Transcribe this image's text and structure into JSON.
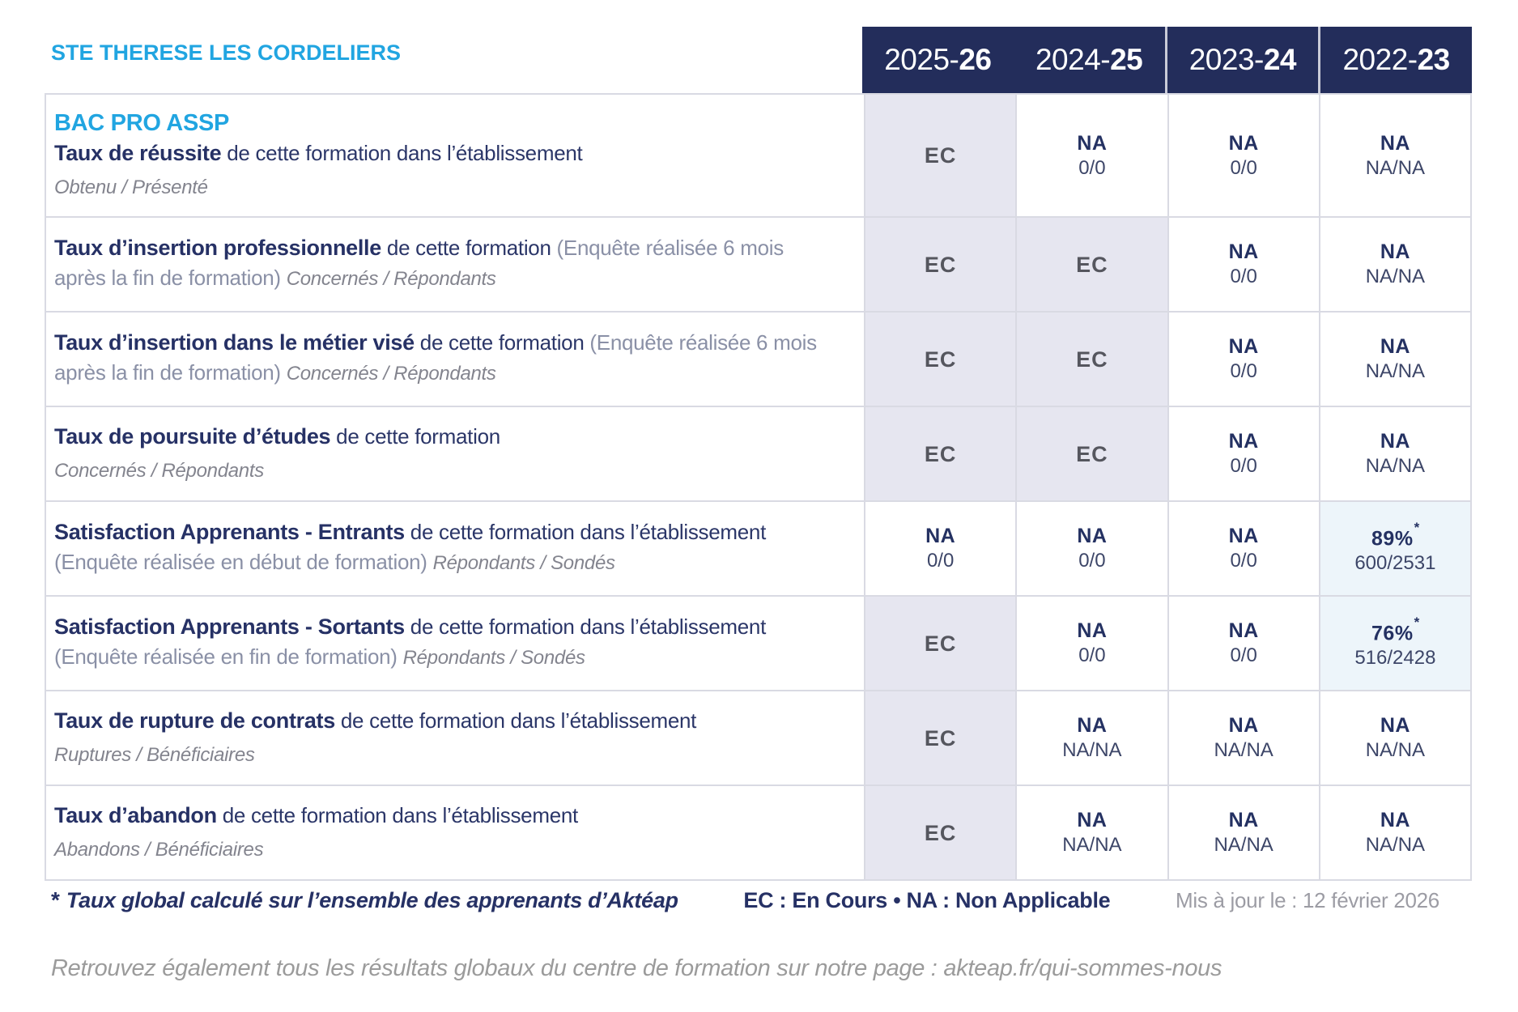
{
  "school": "STE THERESE LES CORDELIERS",
  "colors": {
    "accent_blue": "#21A5E1",
    "header_navy": "#232D5B",
    "text_navy": "#263165",
    "ec_cell_bg": "#E6E6F0",
    "pct_cell_bg": "#EDF5FA",
    "grid_border": "#D9DAE3"
  },
  "columns": [
    {
      "prefix": "2025-",
      "suffix": "26"
    },
    {
      "prefix": "2024-",
      "suffix": "25"
    },
    {
      "prefix": "2023-",
      "suffix": "24"
    },
    {
      "prefix": "2022-",
      "suffix": "23"
    }
  ],
  "rows": [
    {
      "program": "BAC PRO ASSP",
      "title": "Taux de réussite",
      "desc": " de cette formation dans l’établissement",
      "paren": "",
      "sub_inline": "",
      "sub_block": "Obtenu / Présenté",
      "cells": [
        {
          "type": "ec",
          "main": "EC",
          "star": "",
          "sub": ""
        },
        {
          "type": "na",
          "main": "NA",
          "star": "",
          "sub": "0/0"
        },
        {
          "type": "na",
          "main": "NA",
          "star": "",
          "sub": "0/0"
        },
        {
          "type": "na",
          "main": "NA",
          "star": "",
          "sub": "NA/NA"
        }
      ]
    },
    {
      "title": "Taux d’insertion professionnelle",
      "desc": " de cette formation ",
      "paren": "(Enquête réalisée 6 mois après la fin de formation) ",
      "sub_inline": "Concernés / Répondants",
      "sub_block": "",
      "cells": [
        {
          "type": "ec",
          "main": "EC",
          "star": "",
          "sub": ""
        },
        {
          "type": "ec",
          "main": "EC",
          "star": "",
          "sub": ""
        },
        {
          "type": "na",
          "main": "NA",
          "star": "",
          "sub": "0/0"
        },
        {
          "type": "na",
          "main": "NA",
          "star": "",
          "sub": "NA/NA"
        }
      ]
    },
    {
      "title": "Taux d’insertion dans le métier visé",
      "desc": " de cette formation ",
      "paren": "(Enquête réalisée 6 mois après la fin de formation) ",
      "sub_inline": "Concernés / Répondants",
      "sub_block": "",
      "cells": [
        {
          "type": "ec",
          "main": "EC",
          "star": "",
          "sub": ""
        },
        {
          "type": "ec",
          "main": "EC",
          "star": "",
          "sub": ""
        },
        {
          "type": "na",
          "main": "NA",
          "star": "",
          "sub": "0/0"
        },
        {
          "type": "na",
          "main": "NA",
          "star": "",
          "sub": "NA/NA"
        }
      ]
    },
    {
      "title": "Taux de poursuite d’études",
      "desc": " de cette formation",
      "paren": "",
      "sub_inline": "",
      "sub_block": "Concernés / Répondants",
      "cells": [
        {
          "type": "ec",
          "main": "EC",
          "star": "",
          "sub": ""
        },
        {
          "type": "ec",
          "main": "EC",
          "star": "",
          "sub": ""
        },
        {
          "type": "na",
          "main": "NA",
          "star": "",
          "sub": "0/0"
        },
        {
          "type": "na",
          "main": "NA",
          "star": "",
          "sub": "NA/NA"
        }
      ]
    },
    {
      "title": "Satisfaction Apprenants - Entrants",
      "desc": " de cette formation dans l’établissement ",
      "paren": "(Enquête réalisée en début de formation) ",
      "sub_inline": "Répondants / Sondés",
      "sub_block": "",
      "cells": [
        {
          "type": "na",
          "main": "NA",
          "star": "",
          "sub": "0/0"
        },
        {
          "type": "na",
          "main": "NA",
          "star": "",
          "sub": "0/0"
        },
        {
          "type": "na",
          "main": "NA",
          "star": "",
          "sub": "0/0"
        },
        {
          "type": "pct",
          "main": "89%",
          "star": "*",
          "sub": "600/2531"
        }
      ]
    },
    {
      "title": "Satisfaction Apprenants - Sortants",
      "desc": " de cette formation dans l’établissement ",
      "paren": "(Enquête réalisée en fin de formation) ",
      "sub_inline": "Répondants / Sondés",
      "sub_block": "",
      "cells": [
        {
          "type": "ec",
          "main": "EC",
          "star": "",
          "sub": ""
        },
        {
          "type": "na",
          "main": "NA",
          "star": "",
          "sub": "0/0"
        },
        {
          "type": "na",
          "main": "NA",
          "star": "",
          "sub": "0/0"
        },
        {
          "type": "pct",
          "main": "76%",
          "star": "*",
          "sub": "516/2428"
        }
      ]
    },
    {
      "title": "Taux de rupture de contrats",
      "desc": " de cette formation dans l’établissement",
      "paren": "",
      "sub_inline": "",
      "sub_block": "Ruptures / Bénéficiaires",
      "cells": [
        {
          "type": "ec",
          "main": "EC",
          "star": "",
          "sub": ""
        },
        {
          "type": "na",
          "main": "NA",
          "star": "",
          "sub": "NA/NA"
        },
        {
          "type": "na",
          "main": "NA",
          "star": "",
          "sub": "NA/NA"
        },
        {
          "type": "na",
          "main": "NA",
          "star": "",
          "sub": "NA/NA"
        }
      ]
    },
    {
      "title": "Taux d’abandon",
      "desc": " de cette formation dans l’établissement",
      "paren": "",
      "sub_inline": "",
      "sub_block": "Abandons / Bénéficiaires",
      "cells": [
        {
          "type": "ec",
          "main": "EC",
          "star": "",
          "sub": ""
        },
        {
          "type": "na",
          "main": "NA",
          "star": "",
          "sub": "NA/NA"
        },
        {
          "type": "na",
          "main": "NA",
          "star": "",
          "sub": "NA/NA"
        },
        {
          "type": "na",
          "main": "NA",
          "star": "",
          "sub": "NA/NA"
        }
      ]
    }
  ],
  "footer": {
    "star": "*",
    "note": "Taux global calculé sur l’ensemble des apprenants d’Aktéap",
    "legend": "EC : En Cours  •  NA : Non Applicable",
    "updated": "Mis à jour le : 12 février 2026",
    "bottom_note": "Retrouvez également tous les résultats globaux du centre de formation sur notre page : akteap.fr/qui-sommes-nous"
  }
}
